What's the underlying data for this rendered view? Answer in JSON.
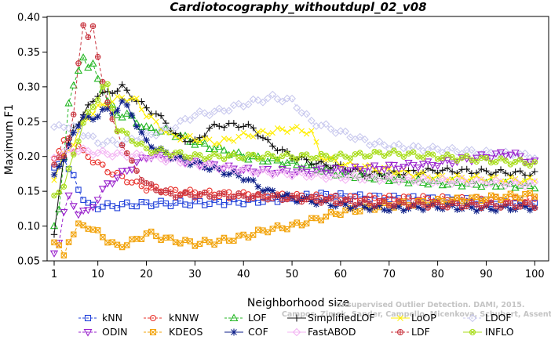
{
  "chart_data": {
    "type": "line",
    "title": "Cardiotocography_withoutdupl_02_v08",
    "xlabel": "Neighborhood size",
    "ylabel": "Maximum F1",
    "xlim": [
      0,
      100
    ],
    "ylim": [
      0.05,
      0.4
    ],
    "xticks": [
      1,
      10,
      20,
      30,
      40,
      50,
      60,
      70,
      80,
      90,
      100
    ],
    "yticks": [
      0.05,
      0.1,
      0.15,
      0.2,
      0.25,
      0.3,
      0.35,
      0.4
    ],
    "grid": false,
    "legend_position": "bottom",
    "watermark": {
      "line1": "Unsupervised Outlier Detection. DAMI, 2015.",
      "line2": "Campos, Zimek, Sander, Campello, Micenkova, Schubert, Assent, Houle"
    },
    "series": [
      {
        "name": "kNN",
        "color": "#1f3fd9",
        "marker": "square",
        "dashed": true,
        "points": [
          [
            1,
            0.18
          ],
          [
            2,
            0.19
          ],
          [
            3,
            0.2
          ],
          [
            4,
            0.18
          ],
          [
            5,
            0.17
          ],
          [
            6,
            0.155
          ],
          [
            7,
            0.14
          ],
          [
            8,
            0.13
          ],
          [
            10,
            0.128
          ],
          [
            15,
            0.13
          ],
          [
            20,
            0.132
          ],
          [
            30,
            0.133
          ],
          [
            40,
            0.135
          ],
          [
            50,
            0.14
          ],
          [
            55,
            0.145
          ],
          [
            60,
            0.143
          ],
          [
            70,
            0.14
          ],
          [
            80,
            0.138
          ],
          [
            90,
            0.135
          ],
          [
            100,
            0.132
          ]
        ]
      },
      {
        "name": "kNNW",
        "color": "#e8302a",
        "marker": "circle",
        "dashed": true,
        "points": [
          [
            1,
            0.2
          ],
          [
            2,
            0.21
          ],
          [
            3,
            0.22
          ],
          [
            4,
            0.215
          ],
          [
            5,
            0.21
          ],
          [
            6,
            0.215
          ],
          [
            7,
            0.205
          ],
          [
            8,
            0.2
          ],
          [
            9,
            0.195
          ],
          [
            10,
            0.19
          ],
          [
            12,
            0.18
          ],
          [
            15,
            0.17
          ],
          [
            18,
            0.16
          ],
          [
            20,
            0.155
          ],
          [
            25,
            0.15
          ],
          [
            30,
            0.148
          ],
          [
            40,
            0.145
          ],
          [
            50,
            0.143
          ],
          [
            60,
            0.14
          ],
          [
            70,
            0.14
          ],
          [
            80,
            0.139
          ],
          [
            90,
            0.138
          ],
          [
            100,
            0.137
          ]
        ]
      },
      {
        "name": "LOF",
        "color": "#22b622",
        "marker": "triangle-up",
        "dashed": true,
        "points": [
          [
            1,
            0.1
          ],
          [
            2,
            0.12
          ],
          [
            3,
            0.2
          ],
          [
            4,
            0.28
          ],
          [
            5,
            0.3
          ],
          [
            6,
            0.32
          ],
          [
            7,
            0.345
          ],
          [
            8,
            0.33
          ],
          [
            9,
            0.33
          ],
          [
            10,
            0.31
          ],
          [
            11,
            0.3
          ],
          [
            12,
            0.28
          ],
          [
            14,
            0.26
          ],
          [
            16,
            0.26
          ],
          [
            18,
            0.25
          ],
          [
            20,
            0.24
          ],
          [
            25,
            0.235
          ],
          [
            30,
            0.22
          ],
          [
            35,
            0.21
          ],
          [
            40,
            0.2
          ],
          [
            50,
            0.19
          ],
          [
            60,
            0.175
          ],
          [
            70,
            0.168
          ],
          [
            80,
            0.162
          ],
          [
            90,
            0.16
          ],
          [
            100,
            0.158
          ]
        ]
      },
      {
        "name": "SimplifiedLOF",
        "color": "#111111",
        "marker": "plus",
        "dashed": false,
        "points": [
          [
            1,
            0.085
          ],
          [
            2,
            0.15
          ],
          [
            3,
            0.2
          ],
          [
            5,
            0.24
          ],
          [
            7,
            0.26
          ],
          [
            8,
            0.27
          ],
          [
            9,
            0.28
          ],
          [
            10,
            0.29
          ],
          [
            12,
            0.29
          ],
          [
            15,
            0.3
          ],
          [
            18,
            0.28
          ],
          [
            20,
            0.27
          ],
          [
            22,
            0.26
          ],
          [
            24,
            0.25
          ],
          [
            26,
            0.23
          ],
          [
            30,
            0.22
          ],
          [
            33,
            0.24
          ],
          [
            35,
            0.245
          ],
          [
            40,
            0.245
          ],
          [
            42,
            0.24
          ],
          [
            45,
            0.22
          ],
          [
            50,
            0.2
          ],
          [
            55,
            0.19
          ],
          [
            60,
            0.185
          ],
          [
            65,
            0.175
          ],
          [
            70,
            0.175
          ],
          [
            80,
            0.18
          ],
          [
            90,
            0.178
          ],
          [
            100,
            0.175
          ]
        ]
      },
      {
        "name": "LoOP",
        "color": "#ffee00",
        "marker": "x",
        "dashed": false,
        "points": [
          [
            1,
            0.17
          ],
          [
            3,
            0.2
          ],
          [
            5,
            0.22
          ],
          [
            7,
            0.25
          ],
          [
            10,
            0.27
          ],
          [
            15,
            0.285
          ],
          [
            18,
            0.28
          ],
          [
            20,
            0.26
          ],
          [
            25,
            0.23
          ],
          [
            30,
            0.225
          ],
          [
            35,
            0.22
          ],
          [
            40,
            0.23
          ],
          [
            45,
            0.235
          ],
          [
            50,
            0.24
          ],
          [
            54,
            0.235
          ],
          [
            56,
            0.2
          ],
          [
            60,
            0.19
          ],
          [
            70,
            0.18
          ],
          [
            80,
            0.17
          ],
          [
            90,
            0.168
          ],
          [
            100,
            0.165
          ]
        ]
      },
      {
        "name": "LDOF",
        "color": "#c9c9ee",
        "marker": "diamond",
        "dashed": true,
        "points": [
          [
            1,
            0.24
          ],
          [
            3,
            0.245
          ],
          [
            5,
            0.24
          ],
          [
            8,
            0.23
          ],
          [
            10,
            0.22
          ],
          [
            15,
            0.22
          ],
          [
            20,
            0.23
          ],
          [
            25,
            0.24
          ],
          [
            30,
            0.26
          ],
          [
            35,
            0.265
          ],
          [
            40,
            0.275
          ],
          [
            43,
            0.28
          ],
          [
            46,
            0.285
          ],
          [
            50,
            0.28
          ],
          [
            54,
            0.25
          ],
          [
            58,
            0.24
          ],
          [
            62,
            0.23
          ],
          [
            66,
            0.22
          ],
          [
            70,
            0.215
          ],
          [
            80,
            0.21
          ],
          [
            90,
            0.205
          ],
          [
            100,
            0.2
          ]
        ]
      },
      {
        "name": "ODIN",
        "color": "#9922cc",
        "marker": "triangle-down",
        "dashed": true,
        "points": [
          [
            1,
            0.06
          ],
          [
            2,
            0.08
          ],
          [
            3,
            0.12
          ],
          [
            4,
            0.14
          ],
          [
            5,
            0.13
          ],
          [
            6,
            0.12
          ],
          [
            8,
            0.12
          ],
          [
            10,
            0.14
          ],
          [
            12,
            0.16
          ],
          [
            14,
            0.17
          ],
          [
            16,
            0.18
          ],
          [
            18,
            0.19
          ],
          [
            20,
            0.2
          ],
          [
            25,
            0.2
          ],
          [
            30,
            0.19
          ],
          [
            40,
            0.18
          ],
          [
            50,
            0.178
          ],
          [
            60,
            0.18
          ],
          [
            70,
            0.185
          ],
          [
            80,
            0.19
          ],
          [
            90,
            0.2
          ],
          [
            95,
            0.205
          ],
          [
            100,
            0.19
          ]
        ]
      },
      {
        "name": "KDEOS",
        "color": "#f2a30a",
        "marker": "square-x",
        "dashed": true,
        "points": [
          [
            1,
            0.08
          ],
          [
            2,
            0.07
          ],
          [
            3,
            0.055
          ],
          [
            4,
            0.08
          ],
          [
            5,
            0.09
          ],
          [
            6,
            0.1
          ],
          [
            8,
            0.1
          ],
          [
            10,
            0.09
          ],
          [
            12,
            0.08
          ],
          [
            14,
            0.07
          ],
          [
            16,
            0.075
          ],
          [
            18,
            0.08
          ],
          [
            20,
            0.09
          ],
          [
            25,
            0.08
          ],
          [
            30,
            0.075
          ],
          [
            35,
            0.078
          ],
          [
            40,
            0.085
          ],
          [
            45,
            0.095
          ],
          [
            50,
            0.1
          ],
          [
            55,
            0.11
          ],
          [
            60,
            0.12
          ],
          [
            70,
            0.13
          ],
          [
            80,
            0.135
          ],
          [
            90,
            0.14
          ],
          [
            100,
            0.145
          ]
        ]
      },
      {
        "name": "COF",
        "color": "#0d1f88",
        "marker": "asterisk",
        "dashed": false,
        "points": [
          [
            1,
            0.17
          ],
          [
            3,
            0.2
          ],
          [
            5,
            0.23
          ],
          [
            7,
            0.26
          ],
          [
            9,
            0.25
          ],
          [
            11,
            0.27
          ],
          [
            13,
            0.26
          ],
          [
            15,
            0.28
          ],
          [
            17,
            0.26
          ],
          [
            20,
            0.22
          ],
          [
            25,
            0.2
          ],
          [
            30,
            0.19
          ],
          [
            35,
            0.18
          ],
          [
            40,
            0.17
          ],
          [
            45,
            0.15
          ],
          [
            50,
            0.14
          ],
          [
            55,
            0.135
          ],
          [
            60,
            0.13
          ],
          [
            70,
            0.125
          ],
          [
            80,
            0.128
          ],
          [
            90,
            0.125
          ],
          [
            100,
            0.127
          ]
        ]
      },
      {
        "name": "FastABOD",
        "color": "#f3b4f3",
        "marker": "diamond",
        "dashed": false,
        "points": [
          [
            1,
            0.2
          ],
          [
            3,
            0.205
          ],
          [
            5,
            0.21
          ],
          [
            10,
            0.205
          ],
          [
            20,
            0.2
          ],
          [
            30,
            0.19
          ],
          [
            40,
            0.18
          ],
          [
            50,
            0.175
          ],
          [
            60,
            0.17
          ],
          [
            70,
            0.168
          ],
          [
            80,
            0.165
          ],
          [
            90,
            0.163
          ],
          [
            100,
            0.16
          ]
        ]
      },
      {
        "name": "LDF",
        "color": "#c8343f",
        "marker": "circle-plus",
        "dashed": true,
        "points": [
          [
            1,
            0.19
          ],
          [
            3,
            0.2
          ],
          [
            5,
            0.26
          ],
          [
            6,
            0.33
          ],
          [
            7,
            0.39
          ],
          [
            8,
            0.375
          ],
          [
            9,
            0.385
          ],
          [
            10,
            0.34
          ],
          [
            11,
            0.31
          ],
          [
            13,
            0.25
          ],
          [
            15,
            0.22
          ],
          [
            17,
            0.19
          ],
          [
            20,
            0.16
          ],
          [
            25,
            0.145
          ],
          [
            30,
            0.145
          ],
          [
            40,
            0.143
          ],
          [
            50,
            0.14
          ],
          [
            60,
            0.135
          ],
          [
            70,
            0.132
          ],
          [
            80,
            0.13
          ],
          [
            90,
            0.13
          ],
          [
            100,
            0.13
          ]
        ]
      },
      {
        "name": "INFLO",
        "color": "#a8dd1a",
        "marker": "circle-x",
        "dashed": false,
        "points": [
          [
            1,
            0.14
          ],
          [
            3,
            0.16
          ],
          [
            5,
            0.2
          ],
          [
            7,
            0.25
          ],
          [
            9,
            0.27
          ],
          [
            11,
            0.3
          ],
          [
            12,
            0.3
          ],
          [
            14,
            0.24
          ],
          [
            16,
            0.23
          ],
          [
            18,
            0.22
          ],
          [
            20,
            0.21
          ],
          [
            25,
            0.205
          ],
          [
            30,
            0.2
          ],
          [
            40,
            0.2
          ],
          [
            50,
            0.2
          ],
          [
            60,
            0.2
          ],
          [
            70,
            0.205
          ],
          [
            80,
            0.2
          ],
          [
            90,
            0.195
          ],
          [
            100,
            0.19
          ]
        ]
      }
    ]
  }
}
